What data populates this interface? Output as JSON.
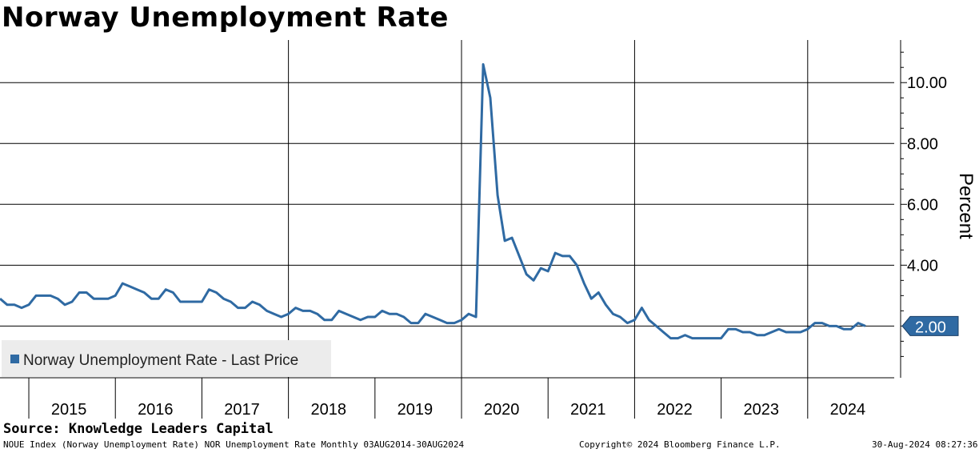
{
  "title": "Norway Unemployment Rate",
  "source": "Source: Knowledge Leaders Capital",
  "footer": {
    "left": "NOUE Index (Norway Unemployment Rate) NOR Unemployment Rate  Monthly 03AUG2014-30AUG2024",
    "center": "Copyright© 2024 Bloomberg Finance L.P.",
    "right": "30-Aug-2024 08:27:36"
  },
  "colors": {
    "line": "#2f6aa3",
    "grid": "#000000",
    "legend_bg": "#ececec",
    "label_bg": "#2f6aa3"
  },
  "chart_data": {
    "type": "line",
    "title": "Norway Unemployment Rate",
    "ylabel": "Percent",
    "ylim": [
      0.3,
      11.4
    ],
    "yticks": [
      {
        "value": 4,
        "label": "4.00"
      },
      {
        "value": 6,
        "label": "6.00"
      },
      {
        "value": 8,
        "label": "8.00"
      },
      {
        "value": 10,
        "label": "10.00"
      }
    ],
    "xlim": [
      2014.667,
      2025.0
    ],
    "year_labels": [
      "2015",
      "2016",
      "2017",
      "2018",
      "2019",
      "2020",
      "2021",
      "2022",
      "2023",
      "2024"
    ],
    "year_label_positions": [
      2015.5,
      2016.5,
      2017.5,
      2018.5,
      2019.5,
      2020.5,
      2021.5,
      2022.5,
      2023.5,
      2024.5
    ],
    "vertical_gridlines": [
      2018.0,
      2020.0,
      2022.0,
      2024.0
    ],
    "minor_year_ticks": [
      2015.0,
      2016.0,
      2017.0,
      2019.0,
      2021.0,
      2023.0
    ],
    "horizontal_gridlines": [
      2,
      4,
      6,
      8,
      10
    ],
    "grid": true,
    "legend": {
      "label": "Norway Unemployment Rate - Last Price",
      "placement": "bottom-left"
    },
    "last_value_label": "2.00",
    "series": [
      {
        "name": "Norway Unemployment Rate - Last Price",
        "x": [
          2014.667,
          2014.75,
          2014.833,
          2014.917,
          2015.0,
          2015.083,
          2015.167,
          2015.25,
          2015.333,
          2015.417,
          2015.5,
          2015.583,
          2015.667,
          2015.75,
          2015.833,
          2015.917,
          2016.0,
          2016.083,
          2016.167,
          2016.25,
          2016.333,
          2016.417,
          2016.5,
          2016.583,
          2016.667,
          2016.75,
          2016.833,
          2016.917,
          2017.0,
          2017.083,
          2017.167,
          2017.25,
          2017.333,
          2017.417,
          2017.5,
          2017.583,
          2017.667,
          2017.75,
          2017.833,
          2017.917,
          2018.0,
          2018.083,
          2018.167,
          2018.25,
          2018.333,
          2018.417,
          2018.5,
          2018.583,
          2018.667,
          2018.75,
          2018.833,
          2018.917,
          2019.0,
          2019.083,
          2019.167,
          2019.25,
          2019.333,
          2019.417,
          2019.5,
          2019.583,
          2019.667,
          2019.75,
          2019.833,
          2019.917,
          2020.0,
          2020.083,
          2020.167,
          2020.25,
          2020.333,
          2020.417,
          2020.5,
          2020.583,
          2020.667,
          2020.75,
          2020.833,
          2020.917,
          2021.0,
          2021.083,
          2021.167,
          2021.25,
          2021.333,
          2021.417,
          2021.5,
          2021.583,
          2021.667,
          2021.75,
          2021.833,
          2021.917,
          2022.0,
          2022.083,
          2022.167,
          2022.25,
          2022.333,
          2022.417,
          2022.5,
          2022.583,
          2022.667,
          2022.75,
          2022.833,
          2022.917,
          2023.0,
          2023.083,
          2023.167,
          2023.25,
          2023.333,
          2023.417,
          2023.5,
          2023.583,
          2023.667,
          2023.75,
          2023.833,
          2023.917,
          2024.0,
          2024.083,
          2024.167,
          2024.25,
          2024.333,
          2024.417,
          2024.5,
          2024.583,
          2024.667
        ],
        "values": [
          2.9,
          2.7,
          2.7,
          2.6,
          2.7,
          3.0,
          3.0,
          3.0,
          2.9,
          2.7,
          2.8,
          3.1,
          3.1,
          2.9,
          2.9,
          2.9,
          3.0,
          3.4,
          3.3,
          3.2,
          3.1,
          2.9,
          2.9,
          3.2,
          3.1,
          2.8,
          2.8,
          2.8,
          2.8,
          3.2,
          3.1,
          2.9,
          2.8,
          2.6,
          2.6,
          2.8,
          2.7,
          2.5,
          2.4,
          2.3,
          2.4,
          2.6,
          2.5,
          2.5,
          2.4,
          2.2,
          2.2,
          2.5,
          2.4,
          2.3,
          2.2,
          2.3,
          2.3,
          2.5,
          2.4,
          2.4,
          2.3,
          2.1,
          2.1,
          2.4,
          2.3,
          2.2,
          2.1,
          2.1,
          2.2,
          2.4,
          2.3,
          10.6,
          9.5,
          6.3,
          4.8,
          4.9,
          4.3,
          3.7,
          3.5,
          3.9,
          3.8,
          4.4,
          4.3,
          4.3,
          4.0,
          3.4,
          2.9,
          3.1,
          2.7,
          2.4,
          2.3,
          2.1,
          2.2,
          2.6,
          2.2,
          2.0,
          1.8,
          1.6,
          1.6,
          1.7,
          1.6,
          1.6,
          1.6,
          1.6,
          1.6,
          1.9,
          1.9,
          1.8,
          1.8,
          1.7,
          1.7,
          1.8,
          1.9,
          1.8,
          1.8,
          1.8,
          1.9,
          2.1,
          2.1,
          2.0,
          2.0,
          1.9,
          1.9,
          2.1,
          2.0
        ]
      }
    ]
  }
}
